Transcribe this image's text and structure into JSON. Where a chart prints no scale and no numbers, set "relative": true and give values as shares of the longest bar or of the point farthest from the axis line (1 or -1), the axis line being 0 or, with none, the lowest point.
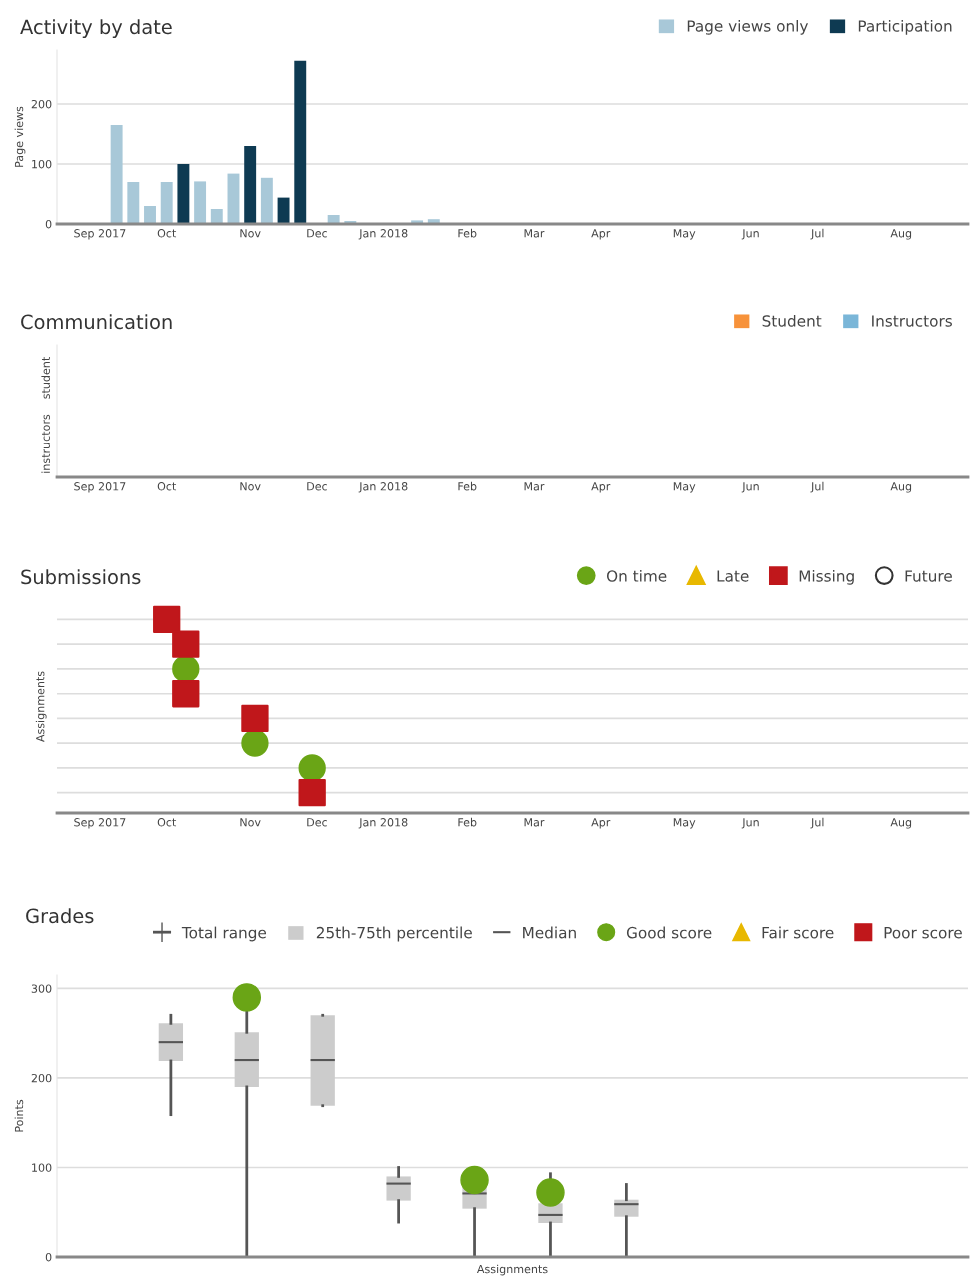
{
  "chart_data": [
    {
      "type": "bar",
      "title": "Activity by date",
      "ylabel": "Page views",
      "x": [
        "2017-09-11",
        "2017-09-18",
        "2017-09-25",
        "2017-10-02",
        "2017-10-09",
        "2017-10-16",
        "2017-10-23",
        "2017-10-30",
        "2017-11-06",
        "2017-11-13",
        "2017-11-20",
        "2017-11-27",
        "2017-12-11",
        "2017-12-18",
        "2018-01-15",
        "2018-01-22"
      ],
      "series": [
        {
          "name": "Page views only",
          "color": "#a8c8d8",
          "values": [
            165,
            70,
            30,
            70,
            null,
            71,
            25,
            84,
            null,
            77,
            null,
            null,
            15,
            5,
            6,
            8
          ]
        },
        {
          "name": "Participation",
          "color": "#0e3a52",
          "values": [
            null,
            null,
            null,
            null,
            100,
            null,
            null,
            null,
            130,
            null,
            44,
            272,
            null,
            null,
            null,
            null
          ]
        }
      ],
      "xlim": [
        "2017-08-17",
        "2018-09-03"
      ],
      "xticks": [
        {
          "value": "2017-09-04",
          "label": "Sep 2017"
        },
        {
          "value": "2017-10-02",
          "label": "Oct"
        },
        {
          "value": "2017-11-06",
          "label": "Nov"
        },
        {
          "value": "2017-12-04",
          "label": "Dec"
        },
        {
          "value": "2018-01-01",
          "label": "Jan 2018"
        },
        {
          "value": "2018-02-05",
          "label": "Feb"
        },
        {
          "value": "2018-03-05",
          "label": "Mar"
        },
        {
          "value": "2018-04-02",
          "label": "Apr"
        },
        {
          "value": "2018-05-07",
          "label": "May"
        },
        {
          "value": "2018-06-04",
          "label": "Jun"
        },
        {
          "value": "2018-07-02",
          "label": "Jul"
        },
        {
          "value": "2018-08-06",
          "label": "Aug"
        }
      ],
      "ylim": [
        0,
        290
      ],
      "yticks": [
        0,
        100,
        200
      ],
      "grid": "y",
      "legend": "top right"
    },
    {
      "type": "bar",
      "orientation": "horizontal",
      "title": "Communication",
      "categories": [
        "student",
        "instructors"
      ],
      "series": [
        {
          "name": "Student",
          "color": "#f7923a",
          "values": [
            null,
            null
          ]
        },
        {
          "name": "Instructors",
          "color": "#7ab6d8",
          "values": [
            null,
            null
          ]
        }
      ],
      "xlim": [
        "2017-08-17",
        "2018-09-03"
      ],
      "xticks": [
        {
          "value": "2017-09-04",
          "label": "Sep 2017"
        },
        {
          "value": "2017-10-02",
          "label": "Oct"
        },
        {
          "value": "2017-11-06",
          "label": "Nov"
        },
        {
          "value": "2017-12-04",
          "label": "Dec"
        },
        {
          "value": "2018-01-01",
          "label": "Jan 2018"
        },
        {
          "value": "2018-02-05",
          "label": "Feb"
        },
        {
          "value": "2018-03-05",
          "label": "Mar"
        },
        {
          "value": "2018-04-02",
          "label": "Apr"
        },
        {
          "value": "2018-05-07",
          "label": "May"
        },
        {
          "value": "2018-06-04",
          "label": "Jun"
        },
        {
          "value": "2018-07-02",
          "label": "Jul"
        },
        {
          "value": "2018-08-06",
          "label": "Aug"
        }
      ],
      "legend": "top right"
    },
    {
      "type": "scatter",
      "title": "Submissions",
      "ylabel": "Assignments",
      "series": [
        {
          "name": "On time",
          "color": "#6aa516",
          "marker": "circle",
          "x": [
            "2017-10-10",
            "2017-11-08",
            "2017-12-02"
          ],
          "values": [
            0.744,
            0.361,
            0.233
          ]
        },
        {
          "name": "Late",
          "color": "#e8b800",
          "marker": "triangle"
        },
        {
          "name": "Missing",
          "color": "#c0171b",
          "marker": "square",
          "x": [
            "2017-10-02",
            "2017-10-10",
            "2017-10-10",
            "2017-11-08",
            "2017-12-02"
          ],
          "values": [
            1,
            0.872,
            0.616,
            0.489,
            0.105
          ]
        },
        {
          "name": "Future",
          "color": "#ffffff",
          "marker": "circle"
        }
      ],
      "relative": true,
      "xlim": [
        "2017-08-17",
        "2018-09-03"
      ],
      "xticks": [
        {
          "value": "2017-09-04",
          "label": "Sep 2017"
        },
        {
          "value": "2017-10-02",
          "label": "Oct"
        },
        {
          "value": "2017-11-06",
          "label": "Nov"
        },
        {
          "value": "2017-12-04",
          "label": "Dec"
        },
        {
          "value": "2018-01-01",
          "label": "Jan 2018"
        },
        {
          "value": "2018-02-05",
          "label": "Feb"
        },
        {
          "value": "2018-03-05",
          "label": "Mar"
        },
        {
          "value": "2018-04-02",
          "label": "Apr"
        },
        {
          "value": "2018-05-07",
          "label": "May"
        },
        {
          "value": "2018-06-04",
          "label": "Jun"
        },
        {
          "value": "2018-07-02",
          "label": "Jul"
        },
        {
          "value": "2018-08-06",
          "label": "Aug"
        }
      ],
      "grid": "y",
      "legend": "top right"
    },
    {
      "type": "box",
      "title": "Grades",
      "ylabel": "Points",
      "xlabel": "Assignments",
      "categories": [
        null,
        null,
        null,
        null,
        null,
        null,
        null,
        null,
        null,
        null,
        null,
        null
      ],
      "boxes": [
        null,
        {
          "low": 159,
          "q1": 219,
          "median": 240,
          "q3": 261,
          "high": 270
        },
        {
          "low": 0,
          "q1": 190,
          "median": 220,
          "q3": 251,
          "high": 280
        },
        {
          "low": 169,
          "q1": 169,
          "median": 220,
          "q3": 270,
          "high": 270
        },
        {
          "low": 39,
          "q1": 63,
          "median": 82,
          "q3": 90,
          "high": 100
        },
        {
          "low": 0,
          "q1": 54,
          "median": 71,
          "q3": 81,
          "high": 81
        },
        {
          "low": 0,
          "q1": 38,
          "median": 47,
          "q3": 60,
          "high": 93
        },
        {
          "low": 0,
          "q1": 45,
          "median": 59,
          "q3": 64,
          "high": 81
        },
        null,
        null,
        null,
        null
      ],
      "series": [
        {
          "name": "Good score",
          "type": "scatter",
          "color": "#6aa516",
          "marker": "circle",
          "values": [
            null,
            null,
            290,
            null,
            null,
            86,
            72,
            null,
            null,
            null,
            null,
            null
          ]
        },
        {
          "name": "Fair score",
          "type": "scatter",
          "color": "#e8b800",
          "marker": "triangle",
          "values": [
            null,
            null,
            null,
            null,
            null,
            null,
            null,
            null,
            null,
            null,
            null,
            null
          ]
        },
        {
          "name": "Poor score",
          "type": "scatter",
          "color": "#c0171b",
          "marker": "square",
          "values": [
            null,
            null,
            null,
            null,
            null,
            null,
            null,
            null,
            null,
            null,
            null,
            null
          ]
        }
      ],
      "annotations": [
        "Total range",
        "25th-75th percentile",
        "Median"
      ],
      "ylim": [
        0,
        315
      ],
      "yticks": [
        0,
        100,
        200,
        300
      ],
      "grid": "y",
      "legend": "top"
    }
  ]
}
